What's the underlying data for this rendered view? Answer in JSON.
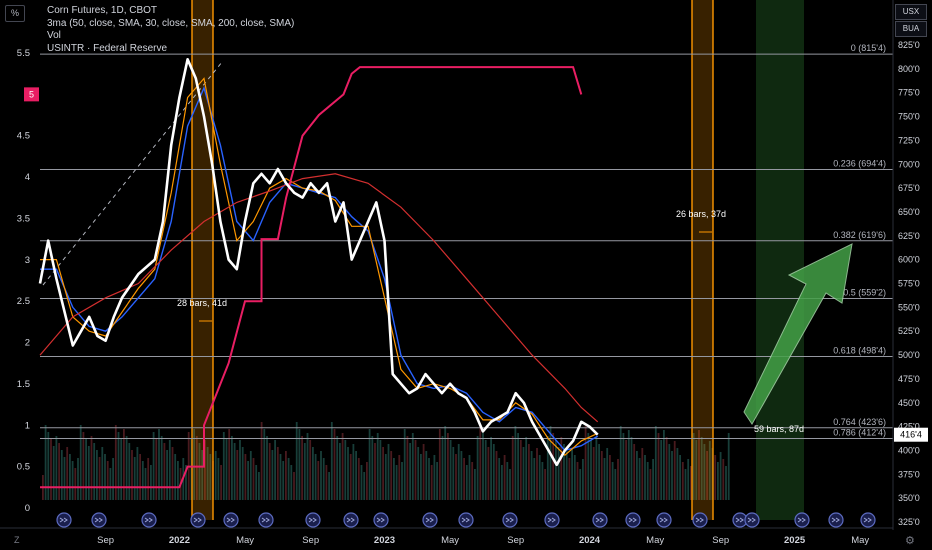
{
  "legend": {
    "symbol": "Corn Futures, 1D, CBOT",
    "indicator1": "3ma (50, close, SMA, 30, close, SMA, 200, close, SMA)",
    "indicator2": "Vol",
    "indicator3": "USINTR · Federal Reserve"
  },
  "controls": {
    "percent_button": "%",
    "currency_button": "USX",
    "unit_button": "BUA",
    "zoom_left": "Z",
    "gear": "⚙"
  },
  "colors": {
    "price": "#ffffff",
    "ma_fast": "#2962ff",
    "ma_mid": "#ff9800",
    "ma_slow": "#d32f2f",
    "fed_rate": "#e91e63",
    "fib_line": "#9598a1",
    "highlight_orange": "#ff9800",
    "highlight_green": "#2e7d32",
    "arrow_green": "#43a047"
  },
  "chart_data": {
    "type": "line",
    "title": "Corn Futures, 1D, CBOT",
    "x_labels": [
      "Sep",
      "2022",
      "May",
      "Sep",
      "2023",
      "May",
      "Sep",
      "2024",
      "May",
      "Sep",
      "2025",
      "May"
    ],
    "x_label_t": [
      0.08,
      0.17,
      0.25,
      0.33,
      0.42,
      0.5,
      0.58,
      0.67,
      0.75,
      0.83,
      0.92,
      1.0
    ],
    "xlim": [
      0,
      1.04
    ],
    "y_right": {
      "unit": "USX",
      "ylim": [
        3212,
        8312
      ],
      "ticks": [
        "825'0",
        "800'0",
        "775'0",
        "750'0",
        "725'0",
        "700'0",
        "675'0",
        "650'0",
        "625'0",
        "600'0",
        "575'0",
        "550'0",
        "525'0",
        "500'0",
        "475'0",
        "450'0",
        "425'0",
        "400'0",
        "375'0",
        "350'0",
        "325'0"
      ],
      "tick_values": [
        825,
        800,
        775,
        750,
        725,
        700,
        675,
        650,
        625,
        600,
        575,
        550,
        525,
        500,
        475,
        450,
        425,
        400,
        375,
        350,
        325
      ],
      "last_price_label": "416'4",
      "last_price": 416.5
    },
    "y_left": {
      "unit": "%",
      "ticks": [
        "5.5",
        "5",
        "4.5",
        "4",
        "3.5",
        "3",
        "2.5",
        "2",
        "1.5",
        "1",
        "0.5",
        "0"
      ],
      "tick_values": [
        5.5,
        5,
        4.5,
        4,
        3.5,
        3,
        2.5,
        2,
        1.5,
        1,
        0.5,
        0
      ],
      "current_rate_label": "5",
      "current_rate": 5
    },
    "price_series": {
      "name": "Corn Futures",
      "points": [
        [
          0,
          575
        ],
        [
          0.01,
          620
        ],
        [
          0.02,
          580
        ],
        [
          0.03,
          545
        ],
        [
          0.04,
          510
        ],
        [
          0.05,
          525
        ],
        [
          0.06,
          540
        ],
        [
          0.07,
          520
        ],
        [
          0.08,
          515
        ],
        [
          0.09,
          540
        ],
        [
          0.1,
          560
        ],
        [
          0.12,
          585
        ],
        [
          0.14,
          600
        ],
        [
          0.15,
          640
        ],
        [
          0.16,
          720
        ],
        [
          0.17,
          770
        ],
        [
          0.18,
          810
        ],
        [
          0.19,
          790
        ],
        [
          0.2,
          750
        ],
        [
          0.21,
          700
        ],
        [
          0.22,
          640
        ],
        [
          0.23,
          600
        ],
        [
          0.24,
          590
        ],
        [
          0.25,
          640
        ],
        [
          0.26,
          680
        ],
        [
          0.27,
          690
        ],
        [
          0.28,
          680
        ],
        [
          0.29,
          695
        ],
        [
          0.3,
          680
        ],
        [
          0.31,
          670
        ],
        [
          0.32,
          665
        ],
        [
          0.33,
          680
        ],
        [
          0.34,
          670
        ],
        [
          0.35,
          680
        ],
        [
          0.36,
          640
        ],
        [
          0.37,
          660
        ],
        [
          0.38,
          600
        ],
        [
          0.39,
          620
        ],
        [
          0.4,
          640
        ],
        [
          0.41,
          660
        ],
        [
          0.42,
          620
        ],
        [
          0.43,
          480
        ],
        [
          0.44,
          470
        ],
        [
          0.45,
          460
        ],
        [
          0.46,
          465
        ],
        [
          0.47,
          480
        ],
        [
          0.48,
          470
        ],
        [
          0.49,
          460
        ],
        [
          0.5,
          470
        ],
        [
          0.51,
          460
        ],
        [
          0.52,
          455
        ],
        [
          0.53,
          440
        ],
        [
          0.54,
          420
        ],
        [
          0.55,
          430
        ],
        [
          0.56,
          435
        ],
        [
          0.57,
          440
        ],
        [
          0.58,
          460
        ],
        [
          0.59,
          450
        ],
        [
          0.6,
          430
        ],
        [
          0.61,
          415
        ],
        [
          0.62,
          400
        ],
        [
          0.63,
          385
        ],
        [
          0.64,
          400
        ],
        [
          0.65,
          410
        ],
        [
          0.66,
          430
        ],
        [
          0.67,
          425
        ],
        [
          0.68,
          416.5
        ]
      ]
    },
    "series": [
      {
        "name": "MA 50",
        "points": [
          [
            0,
            590
          ],
          [
            0.02,
            590
          ],
          [
            0.04,
            550
          ],
          [
            0.06,
            530
          ],
          [
            0.08,
            525
          ],
          [
            0.1,
            540
          ],
          [
            0.12,
            560
          ],
          [
            0.14,
            580
          ],
          [
            0.16,
            640
          ],
          [
            0.18,
            740
          ],
          [
            0.2,
            780
          ],
          [
            0.22,
            720
          ],
          [
            0.24,
            640
          ],
          [
            0.26,
            620
          ],
          [
            0.28,
            660
          ],
          [
            0.3,
            680
          ],
          [
            0.32,
            675
          ],
          [
            0.34,
            670
          ],
          [
            0.36,
            665
          ],
          [
            0.38,
            645
          ],
          [
            0.4,
            630
          ],
          [
            0.42,
            580
          ],
          [
            0.44,
            500
          ],
          [
            0.46,
            470
          ],
          [
            0.48,
            465
          ],
          [
            0.5,
            468
          ],
          [
            0.52,
            460
          ],
          [
            0.54,
            440
          ],
          [
            0.56,
            430
          ],
          [
            0.58,
            445
          ],
          [
            0.6,
            440
          ],
          [
            0.62,
            420
          ],
          [
            0.64,
            400
          ],
          [
            0.66,
            405
          ],
          [
            0.68,
            415
          ]
        ]
      },
      {
        "name": "MA 30",
        "points": [
          [
            0,
            600
          ],
          [
            0.02,
            600
          ],
          [
            0.04,
            540
          ],
          [
            0.06,
            525
          ],
          [
            0.08,
            520
          ],
          [
            0.1,
            545
          ],
          [
            0.12,
            570
          ],
          [
            0.14,
            590
          ],
          [
            0.16,
            670
          ],
          [
            0.18,
            770
          ],
          [
            0.2,
            790
          ],
          [
            0.22,
            700
          ],
          [
            0.24,
            620
          ],
          [
            0.26,
            640
          ],
          [
            0.28,
            675
          ],
          [
            0.3,
            685
          ],
          [
            0.32,
            675
          ],
          [
            0.34,
            672
          ],
          [
            0.36,
            662
          ],
          [
            0.38,
            635
          ],
          [
            0.4,
            635
          ],
          [
            0.42,
            560
          ],
          [
            0.44,
            485
          ],
          [
            0.46,
            465
          ],
          [
            0.48,
            470
          ],
          [
            0.5,
            465
          ],
          [
            0.52,
            455
          ],
          [
            0.54,
            432
          ],
          [
            0.56,
            432
          ],
          [
            0.58,
            450
          ],
          [
            0.6,
            438
          ],
          [
            0.62,
            412
          ],
          [
            0.64,
            395
          ],
          [
            0.66,
            410
          ],
          [
            0.68,
            418
          ]
        ]
      },
      {
        "name": "MA 200",
        "points": [
          [
            0,
            500
          ],
          [
            0.04,
            540
          ],
          [
            0.08,
            560
          ],
          [
            0.12,
            575
          ],
          [
            0.16,
            610
          ],
          [
            0.2,
            640
          ],
          [
            0.24,
            660
          ],
          [
            0.28,
            672
          ],
          [
            0.32,
            685
          ],
          [
            0.36,
            690
          ],
          [
            0.4,
            680
          ],
          [
            0.44,
            655
          ],
          [
            0.48,
            620
          ],
          [
            0.52,
            580
          ],
          [
            0.56,
            540
          ],
          [
            0.6,
            500
          ],
          [
            0.64,
            465
          ],
          [
            0.66,
            445
          ],
          [
            0.68,
            430
          ]
        ]
      },
      {
        "name": "USINTR",
        "points": [
          [
            0,
            0.25
          ],
          [
            0.17,
            0.25
          ],
          [
            0.18,
            0.5
          ],
          [
            0.2,
            0.5
          ],
          [
            0.2,
            1.0
          ],
          [
            0.23,
            1.75
          ],
          [
            0.25,
            2.5
          ],
          [
            0.27,
            2.5
          ],
          [
            0.27,
            3.25
          ],
          [
            0.29,
            3.25
          ],
          [
            0.3,
            3.75
          ],
          [
            0.32,
            4.5
          ],
          [
            0.34,
            4.75
          ],
          [
            0.37,
            5.0
          ],
          [
            0.38,
            5.25
          ],
          [
            0.39,
            5.33
          ],
          [
            0.65,
            5.33
          ],
          [
            0.66,
            5.0
          ]
        ]
      }
    ],
    "fib_levels": [
      {
        "label": "0 (815'4)",
        "value": 815.5
      },
      {
        "label": "0.236 (694'4)",
        "value": 694.5
      },
      {
        "label": "0.382 (619'6)",
        "value": 619.75
      },
      {
        "label": "0.5 (559'2)",
        "value": 559.25
      },
      {
        "label": "0.618 (498'4)",
        "value": 498.5
      },
      {
        "label": "0.764 (423'6)",
        "value": 423.75
      },
      {
        "label": "0.786 (412'4)",
        "value": 412.5
      }
    ],
    "annotations": [
      {
        "text": "28 bars, 41d"
      },
      {
        "text": "26 bars, 37d"
      },
      {
        "text": "59 bars, 87d"
      }
    ]
  }
}
